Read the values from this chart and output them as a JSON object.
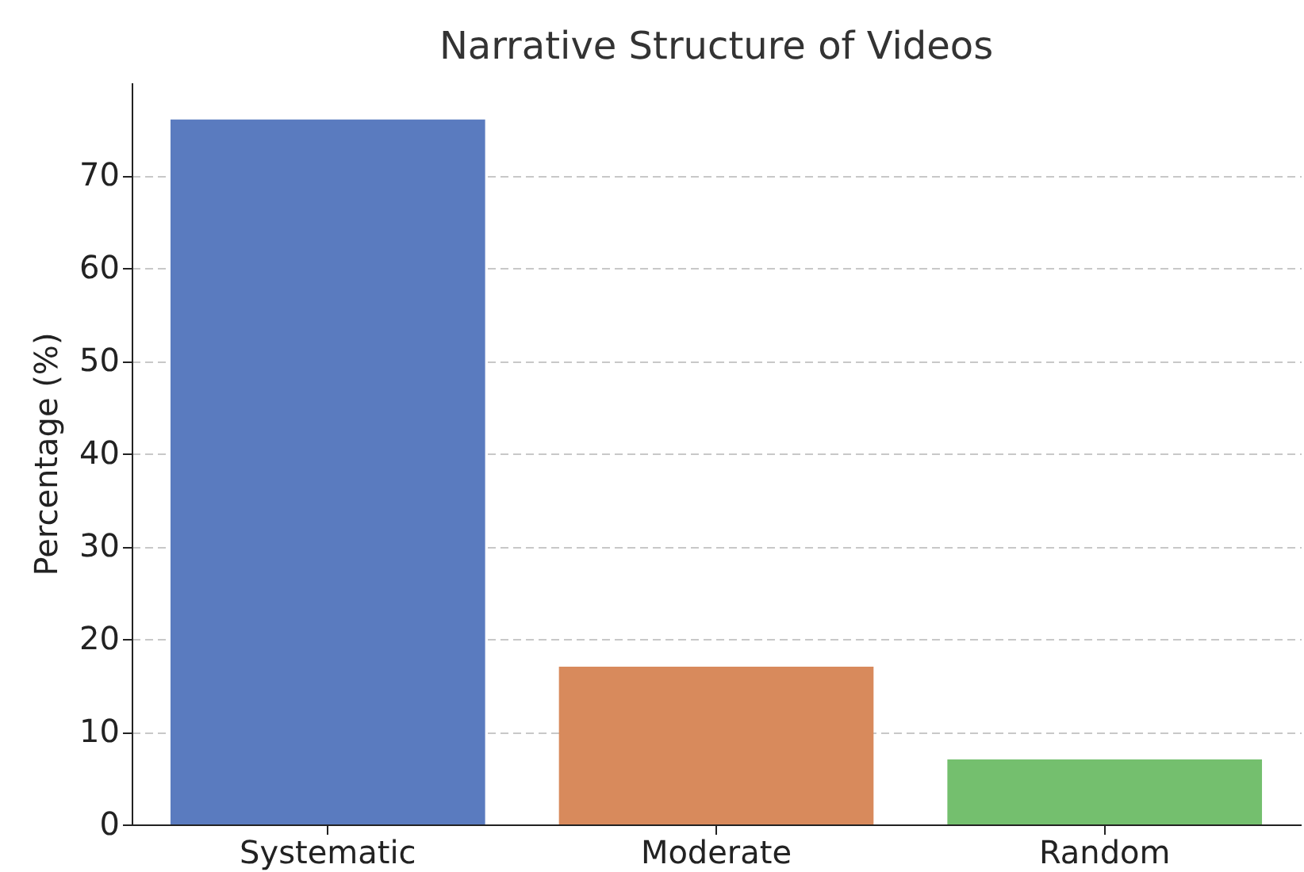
{
  "chart_data": {
    "type": "bar",
    "title": "Narrative Structure of Videos",
    "ylabel": "Percentage (%)",
    "categories": [
      "Systematic",
      "Moderate",
      "Random"
    ],
    "values": [
      76,
      17,
      7
    ],
    "colors": [
      "#5a7bbf",
      "#d88a5c",
      "#74bf6e"
    ],
    "ylim": [
      0,
      80
    ],
    "yticks": [
      0,
      10,
      20,
      30,
      40,
      50,
      60,
      70
    ],
    "grid": "y"
  }
}
